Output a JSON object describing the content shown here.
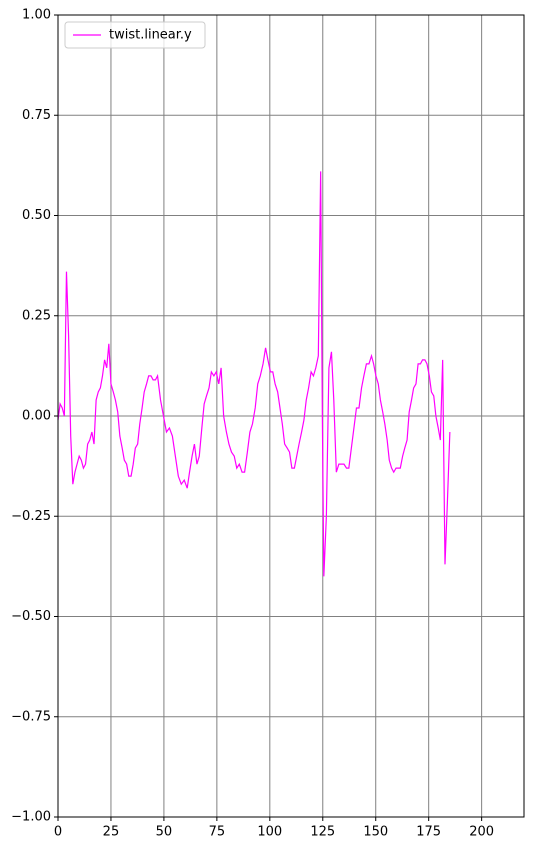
{
  "chart_data": {
    "type": "line",
    "x": [
      0,
      1,
      2,
      3,
      4,
      5,
      6,
      7,
      8,
      9,
      10,
      11,
      12,
      13,
      14,
      15,
      16,
      17,
      18,
      19,
      20,
      21,
      22,
      23,
      24,
      25,
      26.1,
      27.1,
      28.2,
      29.2,
      30.3,
      31.3,
      32.4,
      33.4,
      34.5,
      35.5,
      36.5,
      37.6,
      38.6,
      39.7,
      40.7,
      41.8,
      42.8,
      43.9,
      44.9,
      46,
      47,
      48.4,
      49.8,
      51.2,
      52.6,
      54,
      55.4,
      56.8,
      58.2,
      59.6,
      61,
      62.1,
      63.3,
      64.4,
      65.6,
      66.7,
      67.9,
      69,
      70.1,
      71.3,
      72.4,
      73.6,
      74.7,
      75.9,
      77,
      78.2,
      79.5,
      80.7,
      81.9,
      83.2,
      84.4,
      85.6,
      86.9,
      88.1,
      89.4,
      90.6,
      91.8,
      93.1,
      94.3,
      95.5,
      96.8,
      98,
      99.1,
      100.3,
      101.4,
      102.5,
      103.7,
      104.8,
      105.9,
      107,
      108.2,
      109.3,
      110.4,
      111.6,
      112.7,
      113.8,
      115,
      116.1,
      117.2,
      118.3,
      119.5,
      120.6,
      121.7,
      122.9,
      124,
      124.8,
      125.5,
      126.7,
      127.9,
      129.1,
      130.2,
      131.4,
      132.6,
      133.8,
      135,
      136.2,
      137.3,
      138.5,
      139.7,
      140.9,
      142.1,
      143.3,
      144.4,
      145.6,
      146.8,
      148,
      149,
      150.1,
      151.2,
      152.2,
      153.3,
      154.3,
      155.4,
      156.4,
      157.5,
      158.5,
      159.6,
      160.6,
      161.6,
      162.7,
      163.7,
      164.8,
      165.8,
      166.9,
      167.9,
      169,
      170,
      171.1,
      172.1,
      173.2,
      174.2,
      175.3,
      176.3,
      177.4,
      178.4,
      179.5,
      180.5,
      181.6,
      182.7,
      183.8,
      185
    ],
    "series": [
      {
        "name": "twist.linear.y",
        "color": "#ff00ff",
        "values": [
          -0.01,
          0.03,
          0.02,
          0.0,
          0.36,
          0.2,
          -0.05,
          -0.17,
          -0.14,
          -0.12,
          -0.1,
          -0.11,
          -0.13,
          -0.12,
          -0.07,
          -0.06,
          -0.04,
          -0.07,
          0.04,
          0.06,
          0.07,
          0.1,
          0.14,
          0.12,
          0.18,
          0.08,
          0.06,
          0.04,
          0.01,
          -0.05,
          -0.08,
          -0.11,
          -0.12,
          -0.15,
          -0.15,
          -0.12,
          -0.08,
          -0.07,
          -0.02,
          0.02,
          0.06,
          0.08,
          0.1,
          0.1,
          0.09,
          0.09,
          0.1,
          0.04,
          0.0,
          -0.04,
          -0.03,
          -0.05,
          -0.1,
          -0.15,
          -0.17,
          -0.16,
          -0.18,
          -0.14,
          -0.1,
          -0.07,
          -0.12,
          -0.1,
          -0.03,
          0.03,
          0.05,
          0.07,
          0.11,
          0.1,
          0.11,
          0.08,
          0.12,
          0.0,
          -0.04,
          -0.07,
          -0.09,
          -0.1,
          -0.13,
          -0.12,
          -0.14,
          -0.14,
          -0.09,
          -0.04,
          -0.02,
          0.02,
          0.08,
          0.1,
          0.13,
          0.17,
          0.14,
          0.11,
          0.11,
          0.08,
          0.06,
          0.02,
          -0.02,
          -0.07,
          -0.08,
          -0.09,
          -0.13,
          -0.13,
          -0.1,
          -0.07,
          -0.04,
          -0.01,
          0.04,
          0.07,
          0.11,
          0.1,
          0.12,
          0.15,
          0.61,
          0.0,
          -0.4,
          -0.25,
          0.12,
          0.16,
          0.04,
          -0.14,
          -0.12,
          -0.12,
          -0.12,
          -0.13,
          -0.13,
          -0.08,
          -0.03,
          0.02,
          0.02,
          0.07,
          0.1,
          0.13,
          0.13,
          0.15,
          0.13,
          0.1,
          0.08,
          0.04,
          0.01,
          -0.02,
          -0.06,
          -0.11,
          -0.13,
          -0.14,
          -0.13,
          -0.13,
          -0.13,
          -0.1,
          -0.08,
          -0.06,
          0.01,
          0.04,
          0.07,
          0.08,
          0.13,
          0.13,
          0.14,
          0.14,
          0.13,
          0.1,
          0.06,
          0.05,
          0.0,
          -0.03,
          -0.06,
          0.14,
          -0.37,
          -0.22,
          -0.04
        ]
      }
    ],
    "xlim": [
      0,
      220
    ],
    "xticks": [
      0,
      25,
      50,
      75,
      100,
      125,
      150,
      175,
      200
    ],
    "ylim": [
      -1,
      1
    ],
    "yticks": [
      {
        "value": -1,
        "label": "−1.00"
      },
      {
        "value": -0.75,
        "label": "−0.75"
      },
      {
        "value": -0.5,
        "label": "−0.50"
      },
      {
        "value": -0.25,
        "label": "−0.25"
      },
      {
        "value": 0,
        "label": "0.00"
      },
      {
        "value": 0.25,
        "label": "0.25"
      },
      {
        "value": 0.5,
        "label": "0.50"
      },
      {
        "value": 0.75,
        "label": "0.75"
      },
      {
        "value": 1,
        "label": "1.00"
      }
    ],
    "grid": true,
    "legend": "upper-left"
  }
}
